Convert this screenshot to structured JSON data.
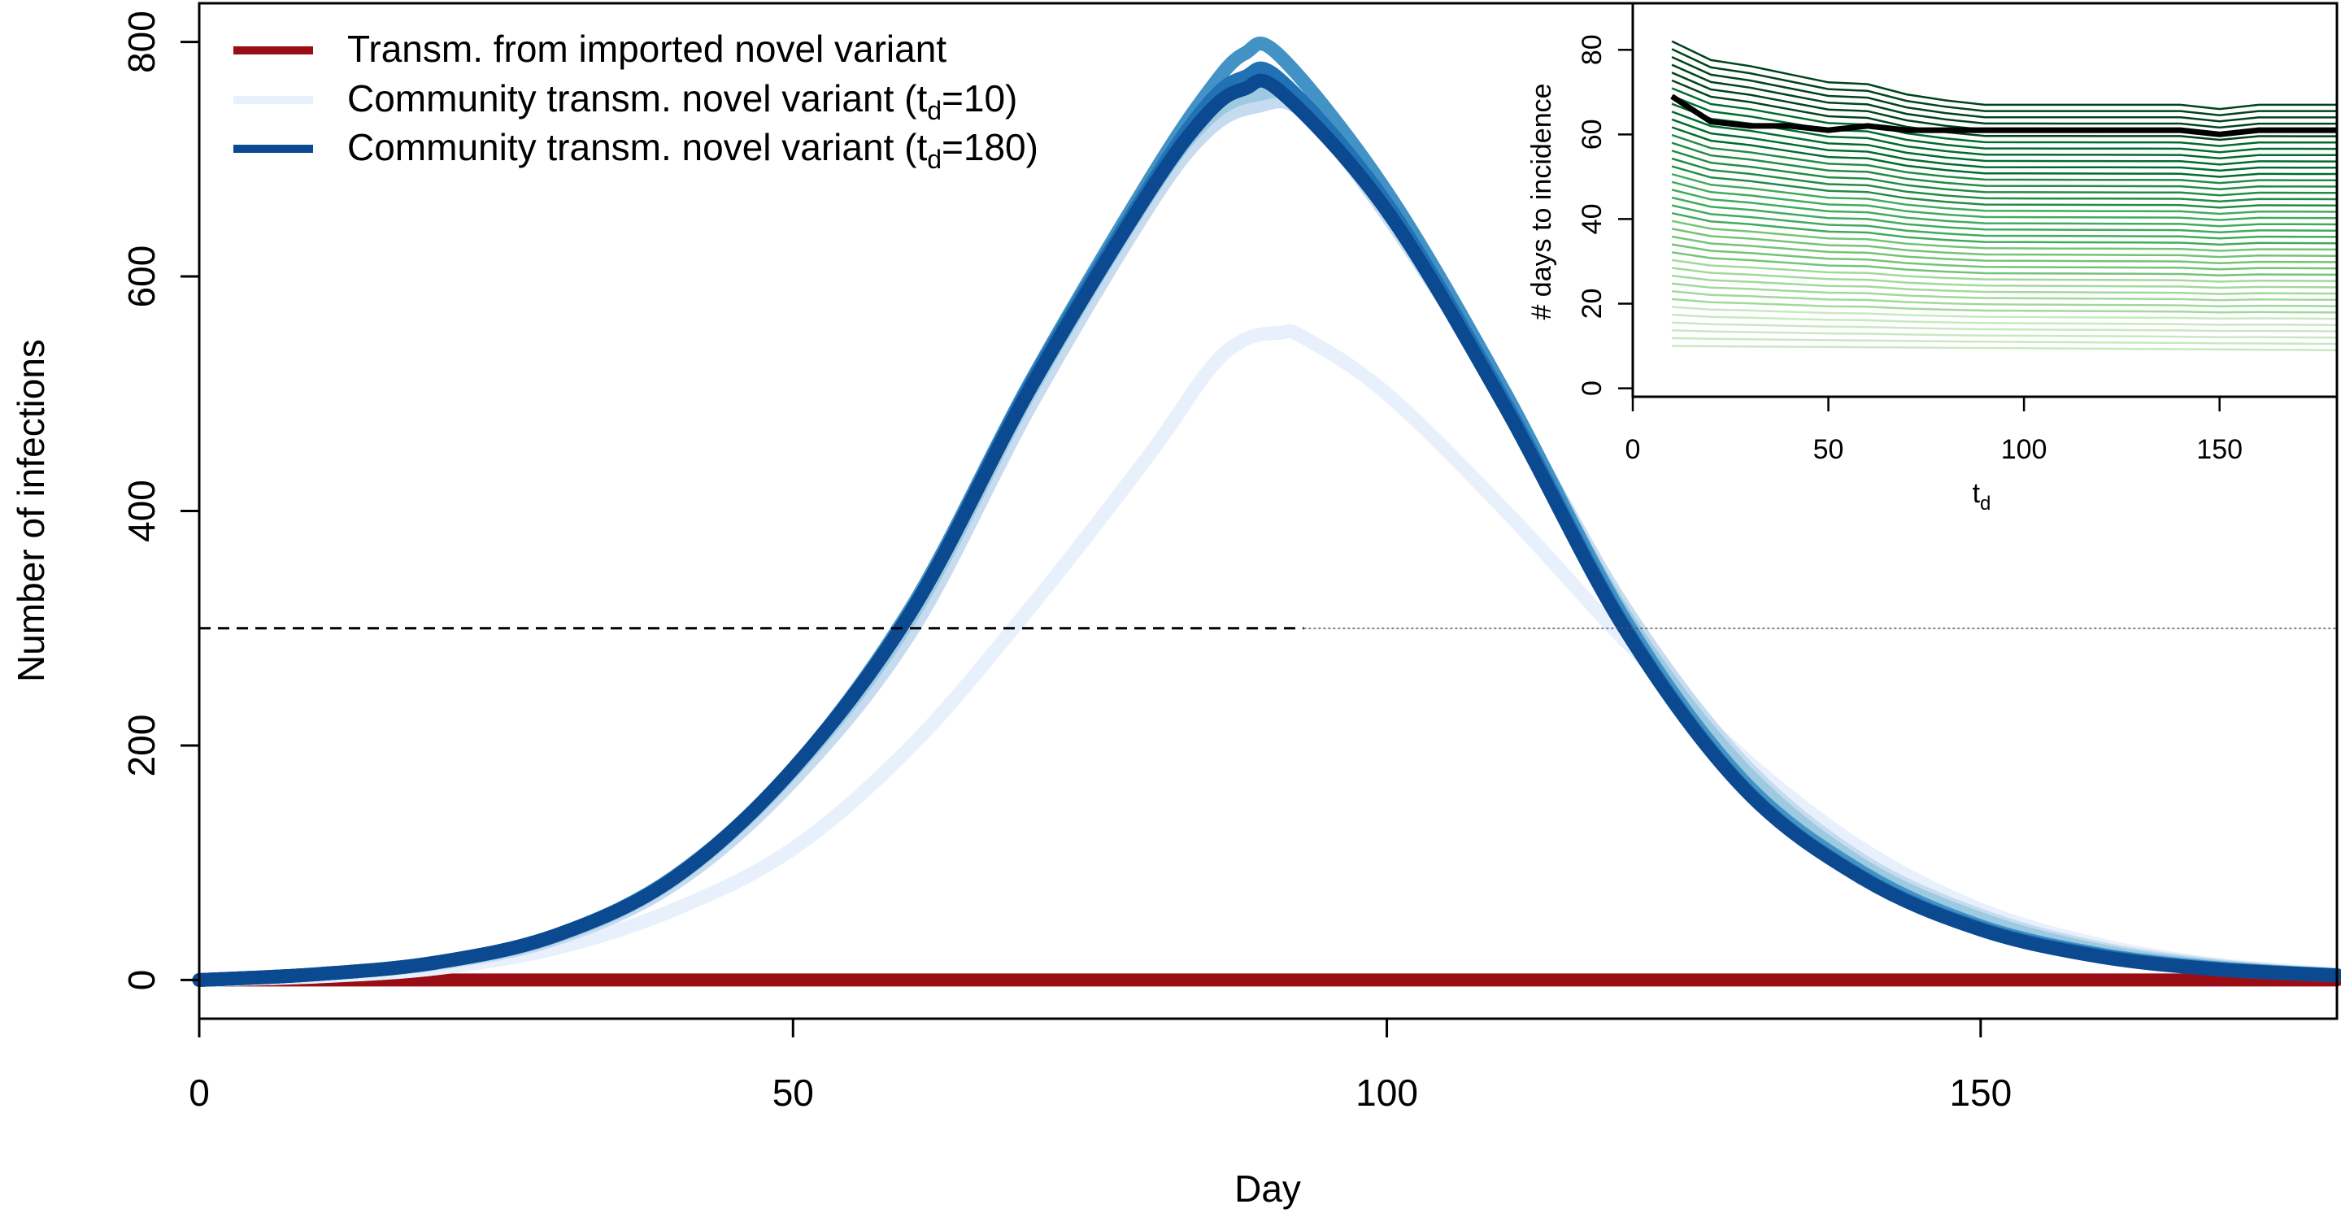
{
  "chart_data": [
    {
      "type": "line",
      "xlabel": "Day",
      "ylabel": "Number of infections",
      "xlim": [
        0,
        180
      ],
      "ylim": [
        -33,
        833
      ],
      "xticks": [
        0,
        50,
        100,
        150
      ],
      "yticks": [
        0,
        200,
        400,
        600,
        800
      ],
      "xtick_labels": [
        "0",
        "50",
        "100",
        "150"
      ],
      "ytick_labels": [
        "0",
        "200",
        "400",
        "600",
        "800"
      ],
      "grid": false,
      "legend": {
        "position": "top-left",
        "entries": [
          {
            "label": "Transm. from imported novel variant",
            "color": "#9b0d14"
          },
          {
            "label": "Community transm. novel variant (",
            "sub": "d",
            "suffix": "=10)",
            "color": "#e8f1fb"
          },
          {
            "label": "Community transm. novel variant (",
            "sub": "d",
            "suffix": "=180)",
            "color": "#0b4a91"
          }
        ]
      },
      "threshold": {
        "y": 300,
        "dashed_until_x": 93
      },
      "series": [
        {
          "name": "Transm. from imported novel variant",
          "color": "#9b0d14",
          "kind": "imported"
        },
        {
          "name": "Community transm. novel variant (td=10)",
          "color": "#e8f1fb",
          "kind": "community",
          "x": [
            0,
            10,
            20,
            30,
            40,
            50,
            60,
            70,
            80,
            85,
            88,
            91,
            93,
            100,
            110,
            120,
            130,
            140,
            150,
            160,
            170,
            180
          ],
          "values": [
            0,
            3,
            10,
            27,
            60,
            112,
            200,
            318,
            448,
            520,
            546,
            552,
            548,
            500,
            400,
            290,
            190,
            112,
            60,
            30,
            13,
            5
          ]
        },
        {
          "name": "",
          "color": "#c6dbef",
          "kind": "community",
          "x": [
            0,
            10,
            20,
            30,
            40,
            50,
            60,
            70,
            80,
            85,
            89,
            93,
            100,
            110,
            120,
            130,
            140,
            150,
            160,
            170,
            180
          ],
          "values": [
            0,
            5,
            14,
            35,
            82,
            170,
            298,
            490,
            660,
            725,
            745,
            740,
            652,
            495,
            318,
            185,
            102,
            55,
            27,
            12,
            4
          ]
        },
        {
          "name": "",
          "color": "#9ecae1",
          "kind": "community",
          "x": [
            0,
            10,
            20,
            30,
            40,
            50,
            60,
            70,
            80,
            85,
            89,
            93,
            100,
            110,
            120,
            130,
            140,
            150,
            160,
            170,
            180
          ],
          "values": [
            0,
            5,
            15,
            37,
            86,
            178,
            310,
            502,
            670,
            735,
            755,
            748,
            660,
            495,
            312,
            180,
            98,
            52,
            25,
            11,
            4
          ]
        },
        {
          "name": "",
          "color": "#4292c6",
          "kind": "community",
          "x": [
            0,
            10,
            20,
            30,
            40,
            50,
            60,
            70,
            80,
            85,
            88,
            91,
            100,
            110,
            120,
            130,
            140,
            150,
            160,
            170,
            180
          ],
          "values": [
            0,
            5,
            15,
            38,
            88,
            180,
            318,
            510,
            682,
            758,
            790,
            788,
            672,
            500,
            308,
            170,
            92,
            46,
            22,
            10,
            4
          ]
        },
        {
          "name": "",
          "color": "#2171b5",
          "kind": "community",
          "x": [
            0,
            10,
            20,
            30,
            40,
            50,
            60,
            70,
            80,
            85,
            88,
            91,
            100,
            110,
            120,
            130,
            140,
            150,
            160,
            170,
            180
          ],
          "values": [
            0,
            5,
            15,
            38,
            87,
            180,
            315,
            508,
            676,
            748,
            770,
            768,
            662,
            492,
            302,
            165,
            88,
            44,
            21,
            9,
            4
          ]
        },
        {
          "name": "Community transm. novel variant (td=180)",
          "color": "#0b4a91",
          "kind": "community",
          "x": [
            0,
            10,
            20,
            30,
            40,
            50,
            60,
            70,
            80,
            85,
            88,
            91,
            100,
            110,
            120,
            130,
            140,
            150,
            160,
            170,
            180
          ],
          "values": [
            0,
            5,
            15,
            38,
            87,
            180,
            315,
            505,
            672,
            740,
            760,
            758,
            656,
            488,
            300,
            164,
            87,
            43,
            20,
            9,
            4
          ]
        }
      ]
    },
    {
      "type": "line",
      "xlabel": "t",
      "xlabel_sub": "d",
      "ylabel": "# days to incidence",
      "xlim": [
        0,
        180
      ],
      "ylim": [
        -2,
        91
      ],
      "xticks": [
        0,
        50,
        100,
        150
      ],
      "yticks": [
        0,
        20,
        40,
        60,
        80
      ],
      "xtick_labels": [
        "0",
        "50",
        "100",
        "150"
      ],
      "ytick_labels": [
        "0",
        "20",
        "40",
        "60",
        "80"
      ],
      "grid": false,
      "x": [
        10,
        20,
        30,
        40,
        50,
        60,
        70,
        80,
        90,
        100,
        110,
        120,
        130,
        140,
        150,
        160,
        170,
        180
      ],
      "series": [
        {
          "name": "",
          "color": "#000000",
          "role": "median",
          "values": [
            69,
            63,
            62,
            62,
            61,
            62,
            61,
            61,
            61,
            61,
            61,
            61,
            61,
            61,
            60,
            61,
            61,
            61
          ]
        }
      ],
      "band": {
        "count": 40,
        "low_start": 10,
        "low_end": 9,
        "high_start": 79,
        "high_end": 68,
        "colors": [
          "#c7e9c0",
          "#a1d99b",
          "#74c476",
          "#41ab5d",
          "#238b45",
          "#006d2c",
          "#00441b"
        ]
      }
    }
  ]
}
